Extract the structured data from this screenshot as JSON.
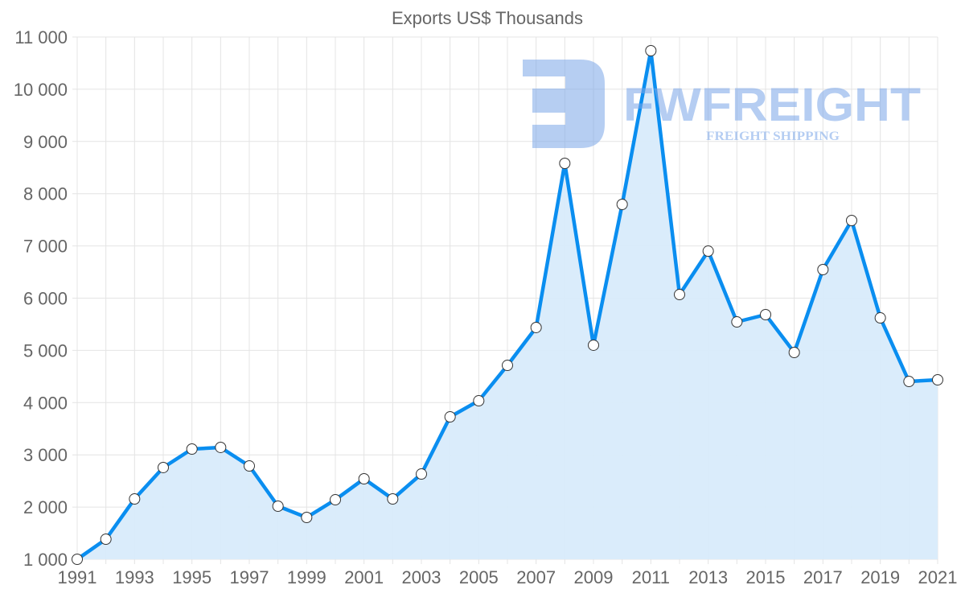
{
  "chart_data": {
    "type": "line",
    "title": "Exports US$ Thousands",
    "xlabel": "",
    "ylabel": "",
    "x": [
      1991,
      1992,
      1993,
      1994,
      1995,
      1996,
      1997,
      1998,
      1999,
      2000,
      2001,
      2002,
      2003,
      2004,
      2005,
      2006,
      2007,
      2008,
      2009,
      2010,
      2011,
      2012,
      2013,
      2014,
      2015,
      2016,
      2017,
      2018,
      2019,
      2020,
      2021
    ],
    "series": [
      {
        "name": "Exports US$ Thousands",
        "values": [
          1000,
          1385,
          2155,
          2757,
          3111,
          3142,
          2787,
          2017,
          1801,
          2140,
          2541,
          2155,
          2633,
          3727,
          4035,
          4713,
          5438,
          8581,
          5099,
          7795,
          10738,
          6069,
          6901,
          5545,
          5684,
          4960,
          6547,
          7487,
          5622,
          4405,
          4436
        ],
        "color": "#0a8ef0",
        "fill": "#d8ebfb"
      }
    ],
    "ylim": [
      1000,
      11000
    ],
    "xlim": [
      1991,
      2021
    ],
    "y_ticks": [
      "1 000",
      "2 000",
      "3 000",
      "4 000",
      "5 000",
      "6 000",
      "7 000",
      "8 000",
      "9 000",
      "10 000",
      "11 000"
    ],
    "x_ticks": [
      "1991",
      "1993",
      "1995",
      "1997",
      "1999",
      "2001",
      "2003",
      "2005",
      "2007",
      "2009",
      "2011",
      "2013",
      "2015",
      "2017",
      "2019",
      "2021"
    ],
    "grid": true,
    "legend": "none"
  },
  "watermark": {
    "brand": "FWFREIGHT",
    "tagline": "FREIGHT SHIPPING",
    "color": "#7aa6e8"
  }
}
